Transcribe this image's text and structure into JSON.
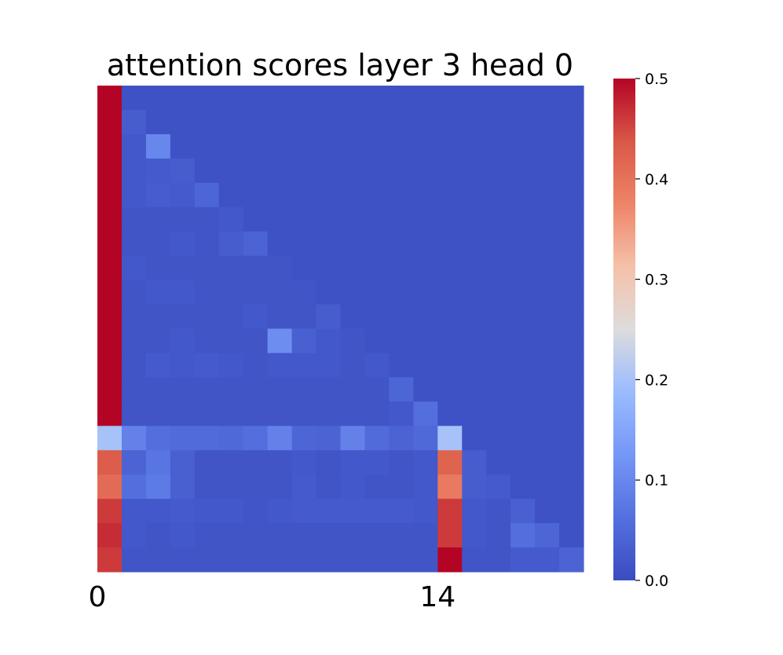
{
  "chart_data": {
    "type": "heatmap",
    "title": "attention scores layer 3 head 0",
    "x_tick_labels": [
      {
        "index": 0,
        "label": "0"
      },
      {
        "index": 14,
        "label": "14"
      }
    ],
    "colorbar": {
      "colormap": "coolwarm",
      "vmin": 0.0,
      "vmax": 0.5,
      "ticks": [
        "0.0",
        "0.1",
        "0.2",
        "0.3",
        "0.4",
        "0.5"
      ],
      "tick_values": [
        0.0,
        0.1,
        0.2,
        0.3,
        0.4,
        0.5
      ]
    },
    "n_rows": 20,
    "n_cols": 20,
    "values": [
      [
        0.6,
        0.01,
        0.01,
        0.01,
        0.01,
        0.01,
        0.01,
        0.01,
        0.01,
        0.01,
        0.01,
        0.01,
        0.01,
        0.01,
        0.01,
        0.01,
        0.01,
        0.01,
        0.01,
        0.01
      ],
      [
        0.6,
        0.03,
        0.01,
        0.01,
        0.01,
        0.01,
        0.01,
        0.01,
        0.01,
        0.01,
        0.01,
        0.01,
        0.01,
        0.01,
        0.01,
        0.01,
        0.01,
        0.01,
        0.01,
        0.01
      ],
      [
        0.6,
        0.02,
        0.1,
        0.01,
        0.01,
        0.01,
        0.01,
        0.01,
        0.01,
        0.01,
        0.01,
        0.01,
        0.01,
        0.01,
        0.01,
        0.01,
        0.01,
        0.01,
        0.01,
        0.01
      ],
      [
        0.6,
        0.02,
        0.025,
        0.03,
        0.01,
        0.01,
        0.01,
        0.01,
        0.01,
        0.01,
        0.01,
        0.01,
        0.01,
        0.01,
        0.01,
        0.01,
        0.01,
        0.01,
        0.01,
        0.01
      ],
      [
        0.6,
        0.02,
        0.03,
        0.025,
        0.045,
        0.01,
        0.01,
        0.01,
        0.01,
        0.01,
        0.01,
        0.01,
        0.01,
        0.01,
        0.01,
        0.01,
        0.01,
        0.01,
        0.01,
        0.01
      ],
      [
        0.6,
        0.015,
        0.015,
        0.015,
        0.015,
        0.02,
        0.01,
        0.01,
        0.01,
        0.01,
        0.01,
        0.01,
        0.01,
        0.01,
        0.01,
        0.01,
        0.01,
        0.01,
        0.01,
        0.01
      ],
      [
        0.6,
        0.015,
        0.015,
        0.02,
        0.015,
        0.03,
        0.04,
        0.01,
        0.01,
        0.01,
        0.01,
        0.01,
        0.01,
        0.01,
        0.01,
        0.01,
        0.01,
        0.01,
        0.01,
        0.01
      ],
      [
        0.6,
        0.02,
        0.015,
        0.015,
        0.015,
        0.015,
        0.015,
        0.015,
        0.01,
        0.01,
        0.01,
        0.01,
        0.01,
        0.01,
        0.01,
        0.01,
        0.01,
        0.01,
        0.01,
        0.01
      ],
      [
        0.6,
        0.015,
        0.02,
        0.02,
        0.015,
        0.015,
        0.015,
        0.015,
        0.015,
        0.01,
        0.01,
        0.01,
        0.01,
        0.01,
        0.01,
        0.01,
        0.01,
        0.01,
        0.01,
        0.01
      ],
      [
        0.6,
        0.015,
        0.015,
        0.015,
        0.015,
        0.015,
        0.02,
        0.015,
        0.015,
        0.03,
        0.01,
        0.01,
        0.01,
        0.01,
        0.01,
        0.01,
        0.01,
        0.01,
        0.01,
        0.01
      ],
      [
        0.6,
        0.015,
        0.015,
        0.02,
        0.015,
        0.015,
        0.015,
        0.11,
        0.035,
        0.02,
        0.015,
        0.01,
        0.01,
        0.01,
        0.01,
        0.01,
        0.01,
        0.01,
        0.01,
        0.01
      ],
      [
        0.6,
        0.015,
        0.025,
        0.02,
        0.025,
        0.02,
        0.015,
        0.02,
        0.02,
        0.02,
        0.015,
        0.02,
        0.01,
        0.01,
        0.01,
        0.01,
        0.01,
        0.01,
        0.01,
        0.01
      ],
      [
        0.6,
        0.015,
        0.015,
        0.015,
        0.015,
        0.015,
        0.015,
        0.015,
        0.015,
        0.015,
        0.015,
        0.015,
        0.045,
        0.01,
        0.01,
        0.01,
        0.01,
        0.01,
        0.01,
        0.01
      ],
      [
        0.6,
        0.015,
        0.015,
        0.015,
        0.015,
        0.015,
        0.015,
        0.015,
        0.015,
        0.015,
        0.015,
        0.015,
        0.02,
        0.06,
        0.01,
        0.01,
        0.01,
        0.01,
        0.01,
        0.01
      ],
      [
        0.2,
        0.09,
        0.06,
        0.055,
        0.055,
        0.05,
        0.06,
        0.09,
        0.045,
        0.04,
        0.09,
        0.055,
        0.04,
        0.05,
        0.2,
        0.01,
        0.01,
        0.01,
        0.01,
        0.01
      ],
      [
        0.43,
        0.04,
        0.07,
        0.035,
        0.015,
        0.015,
        0.015,
        0.015,
        0.02,
        0.015,
        0.02,
        0.02,
        0.015,
        0.02,
        0.42,
        0.03,
        0.01,
        0.01,
        0.01,
        0.01
      ],
      [
        0.41,
        0.06,
        0.08,
        0.035,
        0.015,
        0.015,
        0.015,
        0.015,
        0.025,
        0.015,
        0.02,
        0.015,
        0.015,
        0.02,
        0.39,
        0.03,
        0.025,
        0.01,
        0.01,
        0.01
      ],
      [
        0.46,
        0.02,
        0.02,
        0.025,
        0.02,
        0.02,
        0.015,
        0.02,
        0.025,
        0.025,
        0.025,
        0.025,
        0.025,
        0.02,
        0.46,
        0.02,
        0.015,
        0.035,
        0.01,
        0.01
      ],
      [
        0.47,
        0.02,
        0.015,
        0.02,
        0.015,
        0.015,
        0.015,
        0.015,
        0.015,
        0.015,
        0.015,
        0.015,
        0.015,
        0.015,
        0.46,
        0.02,
        0.015,
        0.06,
        0.045,
        0.01
      ],
      [
        0.46,
        0.015,
        0.015,
        0.015,
        0.015,
        0.015,
        0.015,
        0.015,
        0.015,
        0.015,
        0.015,
        0.015,
        0.015,
        0.015,
        0.55,
        0.015,
        0.015,
        0.025,
        0.025,
        0.04
      ]
    ]
  }
}
